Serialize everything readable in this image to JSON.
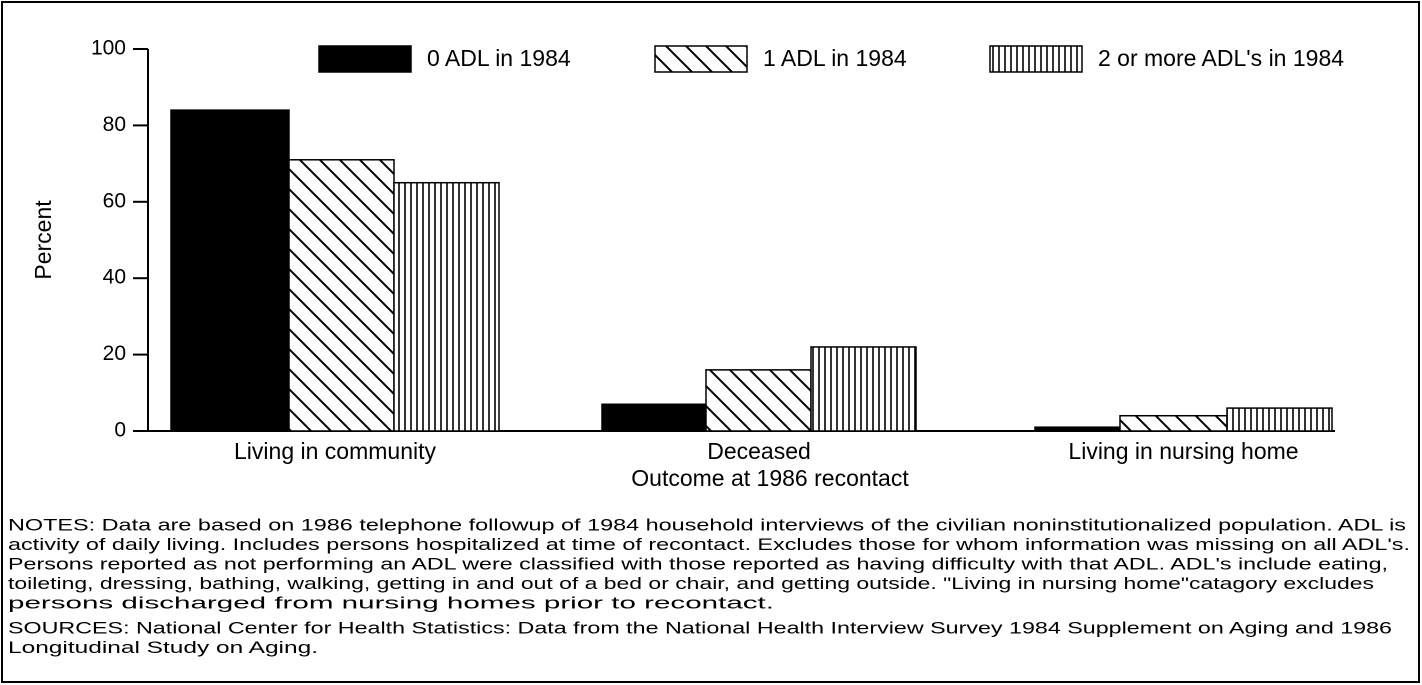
{
  "chart_data": {
    "type": "bar",
    "categories": [
      "Living in community",
      "Deceased",
      "Living in nursing home"
    ],
    "series": [
      {
        "name": "0 ADL in 1984",
        "color": "#000000",
        "pattern": "solid",
        "values": [
          84,
          7,
          1
        ]
      },
      {
        "name": "1 ADL in 1984",
        "color": "#000000",
        "pattern": "diagonal",
        "values": [
          71,
          16,
          4
        ]
      },
      {
        "name": "2 or more ADL's in 1984",
        "color": "#000000",
        "pattern": "vertical",
        "values": [
          65,
          22,
          6
        ]
      }
    ],
    "x_label": "Outcome at 1986 recontact",
    "y_label": "Percent",
    "ylim": [
      0,
      100
    ],
    "yticks": [
      0,
      20,
      40,
      60,
      80,
      100
    ],
    "grid": false,
    "legend": "top",
    "notes": [
      "NOTES: Data are based on 1986 telephone followup of 1984 household interviews of the civilian noninstitutionalized population.  ADL is",
      "activity of daily living.  Includes persons hospitalized at time of recontact.  Excludes those for whom information was missing on all ADL's.",
      "Persons reported as not performing an ADL were classified with those reported as having difficulty with that ADL.  ADL's include eating,",
      "toileting, dressing, bathing, walking, getting in and out of a bed or chair, and getting outside.  \"Living in nursing home\"catagory excludes",
      "persons discharged from nursing homes prior to recontact."
    ],
    "sources": [
      "SOURCES: National Center for Health Statistics: Data from the National Health Interview Survey 1984 Supplement on Aging and 1986",
      "Longitudinal Study on Aging."
    ]
  }
}
